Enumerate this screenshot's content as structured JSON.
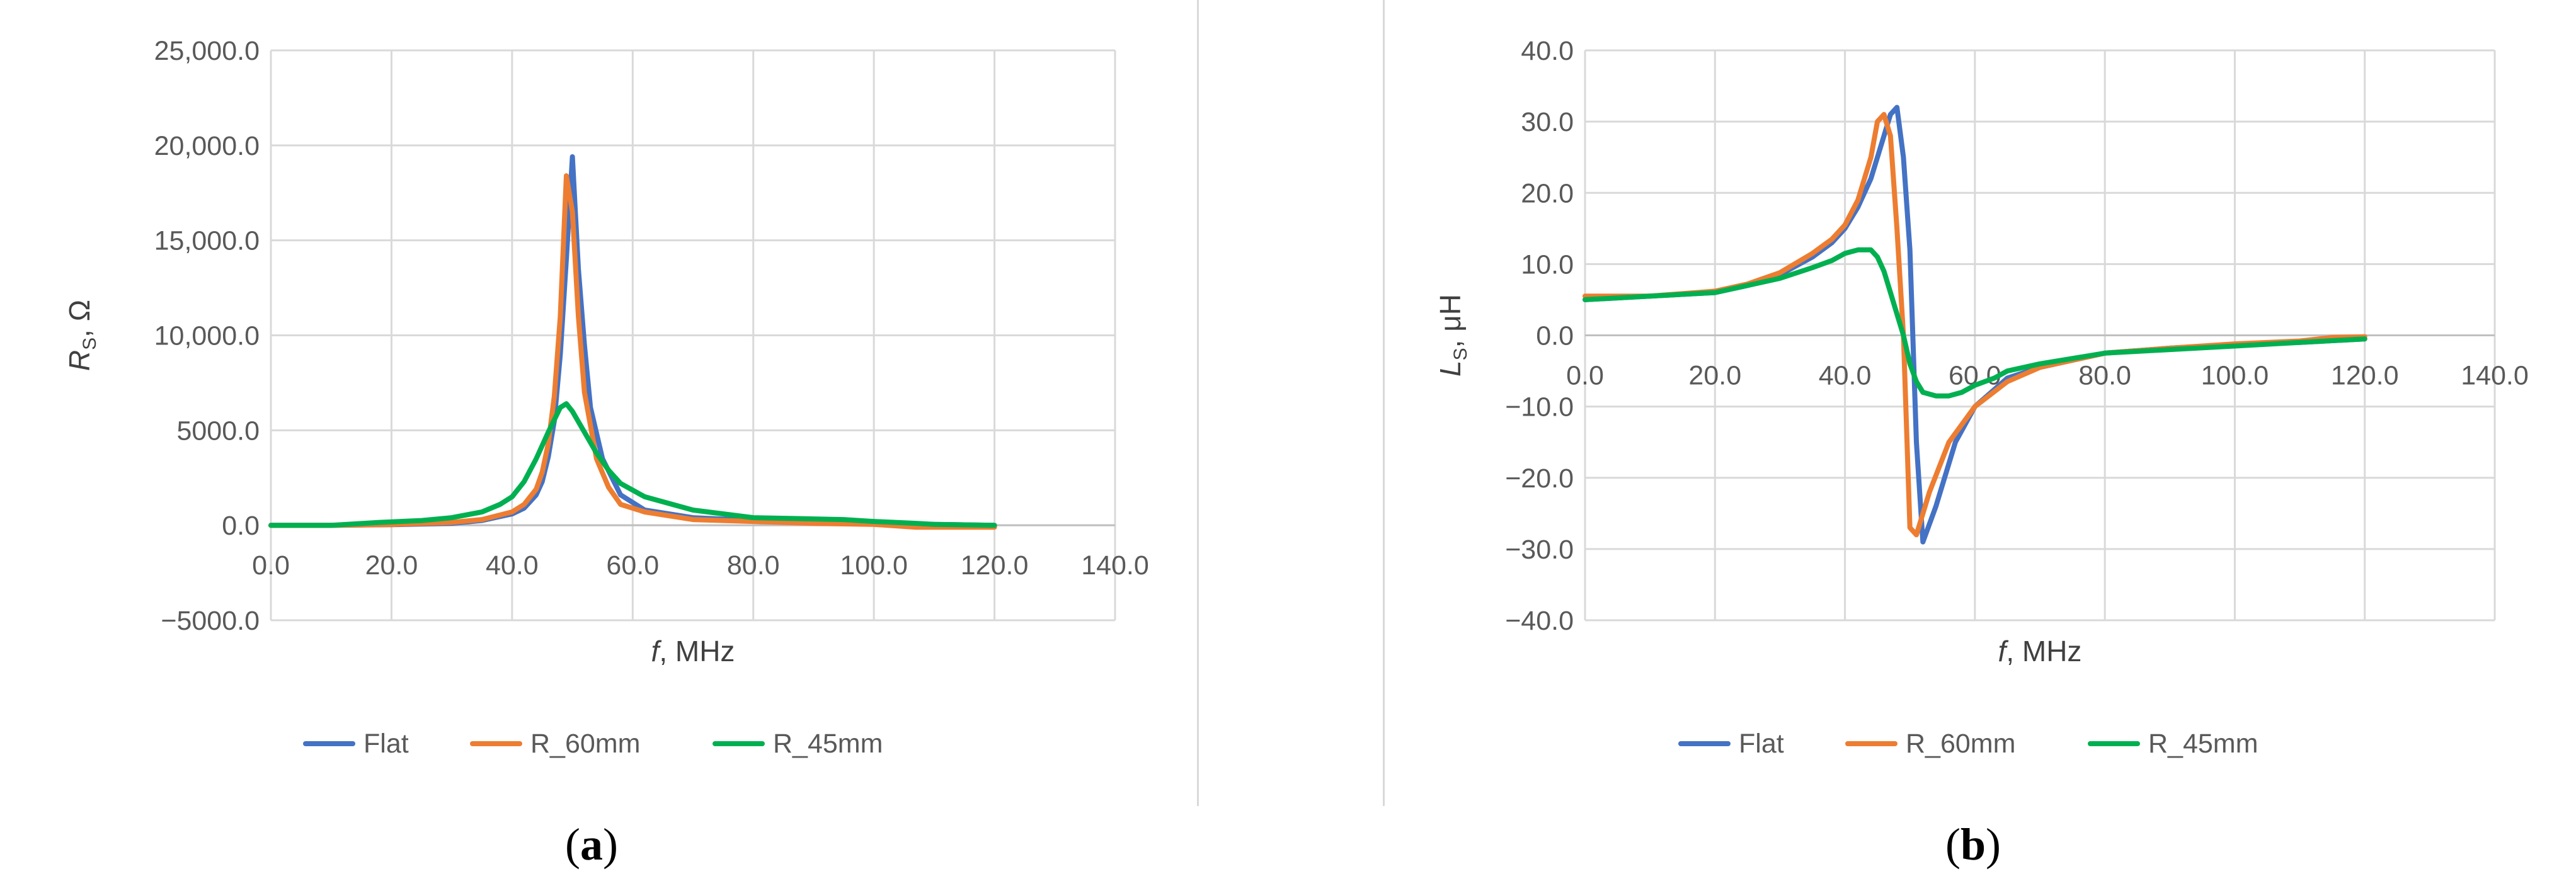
{
  "captions": [
    "a",
    "b"
  ],
  "chart_data": [
    {
      "type": "line",
      "panel": "a",
      "xlabel_var": "f",
      "xlabel_unit": ", MHz",
      "ylabel_var": "R",
      "ylabel_sub": "S",
      "ylabel_unit": ", Ω",
      "xlim": [
        0,
        140
      ],
      "ylim": [
        -5000,
        25000
      ],
      "x_ticks": [
        "0.0",
        "20.0",
        "40.0",
        "60.0",
        "80.0",
        "100.0",
        "120.0",
        "140.0"
      ],
      "y_ticks": [
        "−5000.0",
        "0.0",
        "5000.0",
        "10,000.0",
        "15,000.0",
        "20,000.0",
        "25,000.0"
      ],
      "grid": true,
      "legend_position": "bottom",
      "series": [
        {
          "name": "Flat",
          "color": "#4472C4",
          "x": [
            0,
            10,
            20,
            30,
            35,
            40,
            42,
            44,
            45,
            46,
            47,
            48,
            49,
            50,
            51,
            52,
            53,
            55,
            58,
            62,
            70,
            80,
            90,
            100,
            110,
            120
          ],
          "y": [
            0,
            0,
            30,
            100,
            250,
            600,
            900,
            1600,
            2300,
            3600,
            5500,
            9000,
            14000,
            19400,
            13500,
            9500,
            6200,
            3500,
            1600,
            800,
            400,
            250,
            150,
            100,
            50,
            0
          ]
        },
        {
          "name": "R_60mm",
          "color": "#ED7D31",
          "x": [
            0,
            10,
            20,
            30,
            35,
            40,
            42,
            44,
            45,
            46,
            47,
            48,
            49,
            50,
            51,
            52,
            54,
            56,
            58,
            62,
            70,
            80,
            90,
            100,
            107,
            110,
            120
          ],
          "y": [
            0,
            0,
            40,
            150,
            300,
            700,
            1100,
            1900,
            2800,
            4300,
            6800,
            11000,
            18400,
            16500,
            11000,
            7000,
            3500,
            2000,
            1100,
            700,
            300,
            200,
            100,
            50,
            -100,
            -100,
            -100
          ]
        },
        {
          "name": "R_45mm",
          "color": "#00B050",
          "x": [
            0,
            10,
            18,
            25,
            30,
            35,
            38,
            40,
            42,
            44,
            46,
            48,
            49,
            50,
            52,
            54,
            56,
            58,
            62,
            70,
            80,
            95,
            100,
            107,
            110,
            120
          ],
          "y": [
            0,
            0,
            150,
            250,
            400,
            700,
            1100,
            1500,
            2300,
            3500,
            4900,
            6200,
            6400,
            6000,
            4900,
            3800,
            2900,
            2200,
            1500,
            800,
            400,
            300,
            200,
            100,
            50,
            0
          ]
        }
      ]
    },
    {
      "type": "line",
      "panel": "b",
      "xlabel_var": "f",
      "xlabel_unit": ", MHz",
      "ylabel_var": "L",
      "ylabel_sub": "S",
      "ylabel_unit": ", μH",
      "xlim": [
        0,
        140
      ],
      "ylim": [
        -40,
        40
      ],
      "x_ticks": [
        "0.0",
        "20.0",
        "40.0",
        "60.0",
        "80.0",
        "100.0",
        "120.0",
        "140.0"
      ],
      "y_ticks": [
        "−40.0",
        "−30.0",
        "−20.0",
        "−10.0",
        "0.0",
        "10.0",
        "20.0",
        "30.0",
        "40.0"
      ],
      "grid": true,
      "legend_position": "bottom",
      "series": [
        {
          "name": "Flat",
          "color": "#4472C4",
          "x": [
            0,
            10,
            20,
            25,
            30,
            35,
            38,
            40,
            42,
            44,
            46,
            47,
            48,
            49,
            50,
            51,
            52,
            54,
            57,
            60,
            65,
            70,
            80,
            90,
            100,
            110,
            120
          ],
          "y": [
            5,
            5.5,
            6,
            7,
            8.5,
            11,
            13,
            15,
            18,
            22,
            28,
            31,
            32,
            25,
            12,
            -15,
            -29,
            -24,
            -15,
            -10,
            -6,
            -4.5,
            -2.5,
            -1.8,
            -1.3,
            -1,
            -0.5
          ]
        },
        {
          "name": "R_60mm",
          "color": "#ED7D31",
          "x": [
            0,
            10,
            20,
            25,
            30,
            35,
            38,
            40,
            42,
            44,
            45,
            46,
            47,
            48,
            49,
            50,
            51,
            53,
            56,
            60,
            65,
            70,
            80,
            90,
            100,
            110,
            115,
            120
          ],
          "y": [
            5.5,
            5.5,
            6.2,
            7.2,
            8.8,
            11.5,
            13.5,
            15.5,
            19,
            25,
            30,
            31,
            28,
            15,
            0,
            -27,
            -28,
            -22,
            -15,
            -10,
            -6.5,
            -4.5,
            -2.5,
            -1.8,
            -1.2,
            -0.8,
            -0.3,
            -0.2
          ]
        },
        {
          "name": "R_45mm",
          "color": "#00B050",
          "x": [
            0,
            10,
            20,
            25,
            30,
            35,
            38,
            40,
            42,
            44,
            45,
            46,
            47,
            48,
            49,
            50,
            51,
            52,
            54,
            56,
            58,
            60,
            63,
            65,
            70,
            80,
            90,
            100,
            110,
            120
          ],
          "y": [
            5,
            5.5,
            6,
            7,
            8,
            9.5,
            10.5,
            11.5,
            12,
            12,
            11,
            9,
            6,
            3,
            0,
            -4,
            -6.5,
            -8,
            -8.5,
            -8.5,
            -8,
            -7,
            -6,
            -5,
            -4,
            -2.5,
            -2,
            -1.5,
            -1,
            -0.5
          ]
        }
      ]
    }
  ]
}
